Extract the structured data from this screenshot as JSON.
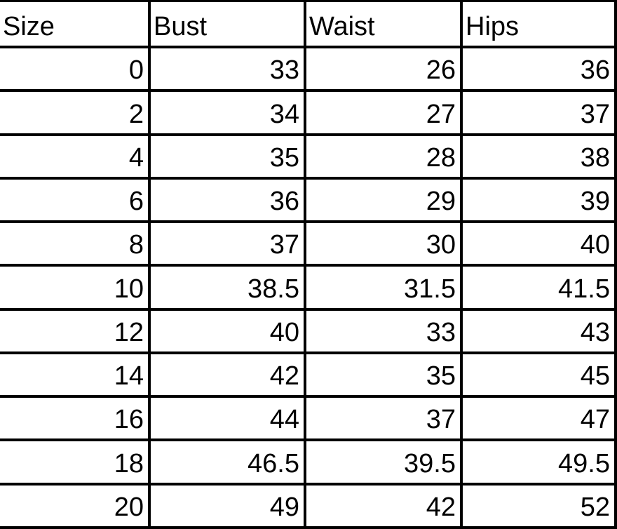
{
  "table": {
    "header": [
      "Size",
      "Bust",
      "Waist",
      "Hips"
    ],
    "rows": [
      [
        0,
        33,
        26,
        36
      ],
      [
        2,
        34,
        27,
        37
      ],
      [
        4,
        35,
        28,
        38
      ],
      [
        6,
        36,
        29,
        39
      ],
      [
        8,
        37,
        30,
        40
      ],
      [
        10,
        38.5,
        31.5,
        41.5
      ],
      [
        12,
        40,
        33,
        43
      ],
      [
        14,
        42,
        35,
        45
      ],
      [
        16,
        44,
        37,
        47
      ],
      [
        18,
        46.5,
        39.5,
        49.5
      ],
      [
        20,
        49,
        42,
        52
      ]
    ]
  }
}
